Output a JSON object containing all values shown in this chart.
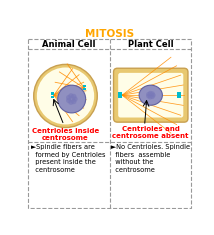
{
  "title": "MITOSIS",
  "title_color": "#FFA500",
  "title_fontsize": 7.5,
  "col1_header": "Animal Cell",
  "col2_header": "Plant Cell",
  "header_fontsize": 6,
  "red_text1": "Centrioles inside\ncentrosome",
  "red_text2": "Centrioles and\ncentrosome absent",
  "red_color": "#FF0000",
  "red_fontsize": 5.0,
  "bullet1": "►Spindle fibers are\n  formed by Centrioles\n  present inside the\n  centrosome",
  "bullet2": "►No Centrioles. Spindle\n  fibers  assemble\n  without the\n  centrosome",
  "bullet_fontsize": 4.8,
  "bg_color": "#FFFFFF",
  "cell_fill": "#FFFDE7",
  "cell_outer_fill": "#E8C870",
  "nucleus_fill": "#9090C0",
  "nucleus_edge": "#6060A0",
  "spindle_color": "#FF8C00",
  "centrosome_color": "#00BBCC",
  "arrow_color": "#000000",
  "border_color": "#999999",
  "divider_color": "#AAAAAA"
}
